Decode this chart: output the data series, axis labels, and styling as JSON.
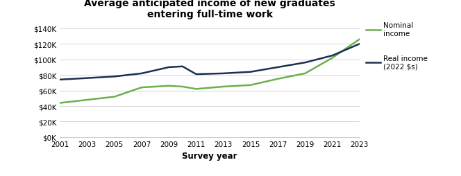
{
  "title": "Average anticipated income of new graduates\nentering full-time work",
  "xlabel": "Survey year",
  "years": [
    2001,
    2003,
    2005,
    2007,
    2009,
    2010,
    2011,
    2013,
    2015,
    2017,
    2019,
    2021,
    2023
  ],
  "nominal": [
    44000,
    48000,
    52000,
    64000,
    66000,
    65000,
    62000,
    65000,
    67000,
    75000,
    82000,
    102000,
    126000
  ],
  "real": [
    74000,
    76000,
    78000,
    82000,
    90000,
    91000,
    81000,
    82000,
    84000,
    90000,
    96000,
    105000,
    120000
  ],
  "nominal_color": "#6ab04c",
  "real_color": "#1a3050",
  "legend_nominal": "Nominal\nincome",
  "legend_real": "Real income\n(2022 $s)",
  "ylim": [
    0,
    150000
  ],
  "yticks": [
    0,
    20000,
    40000,
    60000,
    80000,
    100000,
    120000,
    140000
  ],
  "xticks": [
    2001,
    2003,
    2005,
    2007,
    2009,
    2011,
    2013,
    2015,
    2017,
    2019,
    2021,
    2023
  ],
  "grid_color": "#cccccc",
  "bg_color": "#ffffff",
  "title_fontsize": 10,
  "axis_fontsize": 8.5,
  "tick_fontsize": 7.5,
  "legend_fontsize": 7.5,
  "line_width": 1.8
}
